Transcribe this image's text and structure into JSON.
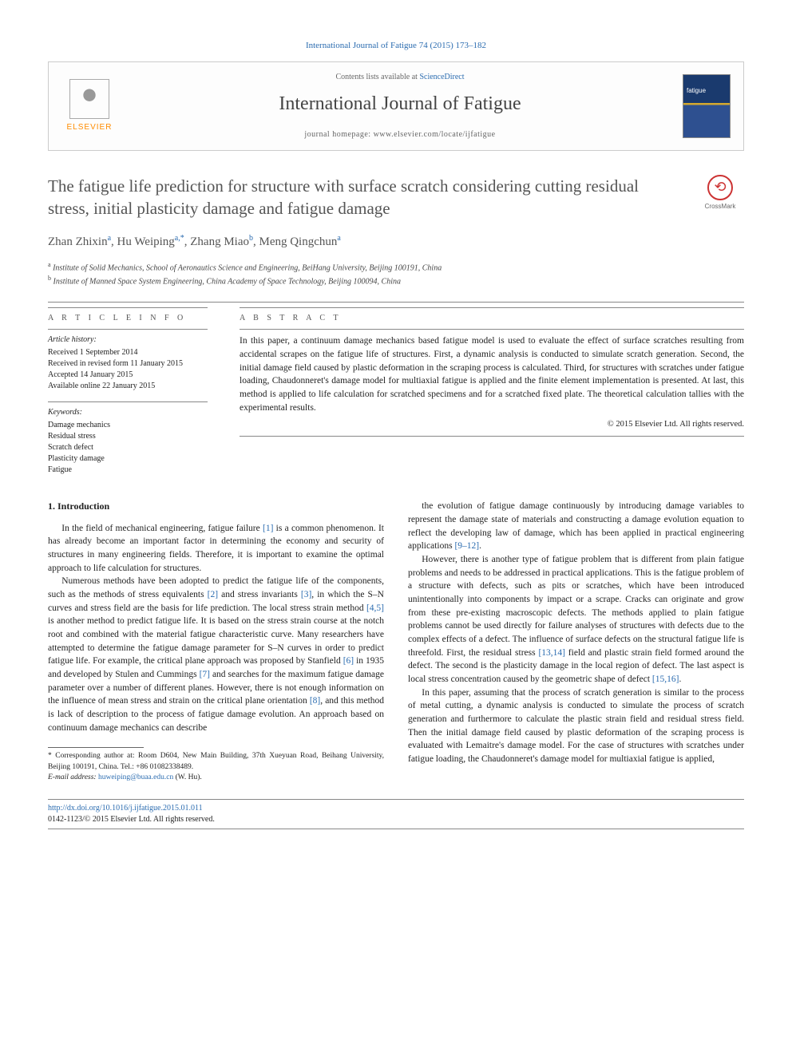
{
  "top_citation": "International Journal of Fatigue 74 (2015) 173–182",
  "header": {
    "contents_prefix": "Contents lists available at ",
    "contents_link": "ScienceDirect",
    "journal_name": "International Journal of Fatigue",
    "homepage_prefix": "journal homepage: ",
    "homepage_url": "www.elsevier.com/locate/ijfatigue",
    "publisher_label": "ELSEVIER"
  },
  "crossmark_label": "CrossMark",
  "title": "The fatigue life prediction for structure with surface scratch considering cutting residual stress, initial plasticity damage and fatigue damage",
  "authors_html": "Zhan Zhixin<sup>a</sup>, Hu Weiping<sup>a,*</sup>, Zhang Miao<sup>b</sup>, Meng Qingchun<sup>a</sup>",
  "affiliations": {
    "a": "Institute of Solid Mechanics, School of Aeronautics Science and Engineering, BeiHang University, Beijing 100191, China",
    "b": "Institute of Manned Space System Engineering, China Academy of Space Technology, Beijing 100094, China"
  },
  "info": {
    "heading": "A R T I C L E   I N F O",
    "history_label": "Article history:",
    "history": [
      "Received 1 September 2014",
      "Received in revised form 11 January 2015",
      "Accepted 14 January 2015",
      "Available online 22 January 2015"
    ],
    "keywords_label": "Keywords:",
    "keywords": [
      "Damage mechanics",
      "Residual stress",
      "Scratch defect",
      "Plasticity damage",
      "Fatigue"
    ]
  },
  "abstract": {
    "heading": "A B S T R A C T",
    "text": "In this paper, a continuum damage mechanics based fatigue model is used to evaluate the effect of surface scratches resulting from accidental scrapes on the fatigue life of structures. First, a dynamic analysis is conducted to simulate scratch generation. Second, the initial damage field caused by plastic deformation in the scraping process is calculated. Third, for structures with scratches under fatigue loading, Chaudonneret's damage model for multiaxial fatigue is applied and the finite element implementation is presented. At last, this method is applied to life calculation for scratched specimens and for a scratched fixed plate. The theoretical calculation tallies with the experimental results.",
    "copyright": "© 2015 Elsevier Ltd. All rights reserved."
  },
  "sections": {
    "intro_heading": "1. Introduction",
    "p1": "In the field of mechanical engineering, fatigue failure [1] is a common phenomenon. It has already become an important factor in determining the economy and security of structures in many engineering fields. Therefore, it is important to examine the optimal approach to life calculation for structures.",
    "p2": "Numerous methods have been adopted to predict the fatigue life of the components, such as the methods of stress equivalents [2] and stress invariants [3], in which the S–N curves and stress field are the basis for life prediction. The local stress strain method [4,5] is another method to predict fatigue life. It is based on the stress strain course at the notch root and combined with the material fatigue characteristic curve. Many researchers have attempted to determine the fatigue damage parameter for S–N curves in order to predict fatigue life. For example, the critical plane approach was proposed by Stanfield [6] in 1935 and developed by Stulen and Cummings [7] and searches for the maximum fatigue damage parameter over a number of different planes. However, there is not enough information on the influence of mean stress and strain on the critical plane orientation [8], and this method is lack of description to the process of fatigue damage evolution. An approach based on continuum damage mechanics can describe",
    "p3": "the evolution of fatigue damage continuously by introducing damage variables to represent the damage state of materials and constructing a damage evolution equation to reflect the developing law of damage, which has been applied in practical engineering applications [9–12].",
    "p4": "However, there is another type of fatigue problem that is different from plain fatigue problems and needs to be addressed in practical applications. This is the fatigue problem of a structure with defects, such as pits or scratches, which have been introduced unintentionally into components by impact or a scrape. Cracks can originate and grow from these pre-existing macroscopic defects. The methods applied to plain fatigue problems cannot be used directly for failure analyses of structures with defects due to the complex effects of a defect. The influence of surface defects on the structural fatigue life is threefold. First, the residual stress [13,14] field and plastic strain field formed around the defect. The second is the plasticity damage in the local region of defect. The last aspect is local stress concentration caused by the geometric shape of defect [15,16].",
    "p5": "In this paper, assuming that the process of scratch generation is similar to the process of metal cutting, a dynamic analysis is conducted to simulate the process of scratch generation and furthermore to calculate the plastic strain field and residual stress field. Then the initial damage field caused by plastic deformation of the scraping process is evaluated with Lemaitre's damage model. For the case of structures with scratches under fatigue loading, the Chaudonneret's damage model for multiaxial fatigue is applied,"
  },
  "footnotes": {
    "corr": "* Corresponding author at: Room D604, New Main Building, 37th Xueyuan Road, Beihang University, Beijing 100191, China. Tel.: +86 01082338489.",
    "email_label": "E-mail address:",
    "email": "huweiping@buaa.edu.cn",
    "email_suffix": "(W. Hu)."
  },
  "bottom": {
    "doi": "http://dx.doi.org/10.1016/j.ijfatigue.2015.01.011",
    "issn_line": "0142-1123/© 2015 Elsevier Ltd. All rights reserved."
  },
  "colors": {
    "link": "#2b6cb0",
    "elsevier_orange": "#ff8c00",
    "text": "#222222",
    "muted": "#555555"
  }
}
